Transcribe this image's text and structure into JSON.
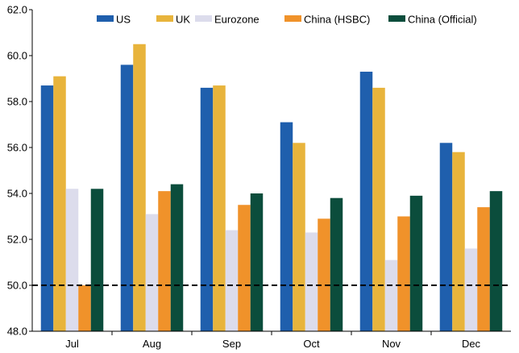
{
  "chart_data": {
    "type": "bar",
    "title": "",
    "xlabel": "",
    "ylabel": "",
    "ylim": [
      48.0,
      62.0
    ],
    "yticks": [
      "48.0",
      "50.0",
      "52.0",
      "54.0",
      "56.0",
      "58.0",
      "60.0",
      "62.0"
    ],
    "categories": [
      "Jul",
      "Aug",
      "Sep",
      "Oct",
      "Nov",
      "Dec"
    ],
    "series": [
      {
        "name": "US",
        "color": "#1f5fad",
        "values": [
          58.7,
          59.6,
          58.6,
          57.1,
          59.3,
          56.2
        ]
      },
      {
        "name": "UK",
        "color": "#e8b43c",
        "values": [
          59.1,
          60.5,
          58.7,
          56.2,
          58.6,
          55.8
        ]
      },
      {
        "name": "Eurozone",
        "color": "#dcdcec",
        "values": [
          54.2,
          53.1,
          52.4,
          52.3,
          51.1,
          51.6
        ]
      },
      {
        "name": "China (HSBC)",
        "color": "#f0922a",
        "values": [
          50.0,
          54.1,
          53.5,
          52.9,
          53.0,
          53.4
        ]
      },
      {
        "name": "China (Official)",
        "color": "#0b4d3c",
        "values": [
          54.2,
          54.4,
          54.0,
          53.8,
          53.9,
          54.1
        ]
      }
    ],
    "reference_line": {
      "value": 50.0,
      "style": "dashed"
    },
    "legend": "top-right",
    "grid": false
  }
}
